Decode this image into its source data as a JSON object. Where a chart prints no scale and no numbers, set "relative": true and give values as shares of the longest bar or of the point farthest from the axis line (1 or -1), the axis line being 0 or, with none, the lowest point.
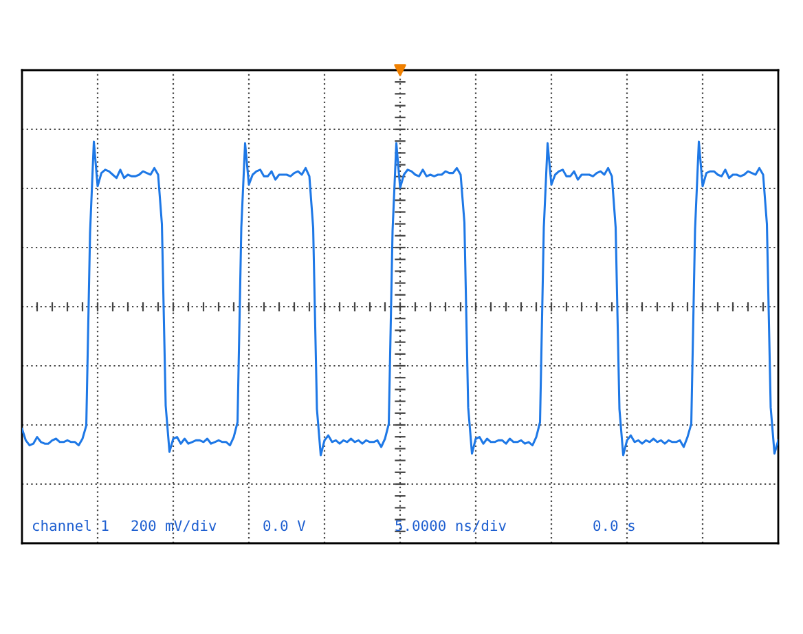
{
  "chart_data": {
    "type": "line",
    "relative": true,
    "grid": true,
    "line_style": "solid",
    "marker": "none",
    "categories": [
      null,
      null,
      null,
      null,
      null,
      null,
      null,
      null,
      null,
      null,
      null,
      null,
      null,
      null,
      null,
      null,
      null,
      null,
      null,
      null,
      null,
      null,
      null,
      null,
      null,
      null,
      null,
      null,
      null,
      null,
      null,
      null,
      null,
      null,
      null,
      null,
      null,
      null,
      null,
      null,
      null,
      null,
      null,
      null,
      null,
      null,
      null,
      null,
      null,
      null,
      null,
      null,
      null,
      null,
      null,
      null,
      null,
      null,
      null,
      null,
      null,
      null,
      null,
      null,
      null,
      null,
      null,
      null,
      null,
      null,
      null,
      null,
      null,
      null,
      null,
      null,
      null,
      null,
      null,
      null,
      null,
      null,
      null,
      null,
      null,
      null,
      null,
      null,
      null,
      null,
      null,
      null,
      null,
      null,
      null,
      null,
      null,
      null,
      null,
      null,
      null,
      null,
      null,
      null,
      null,
      null,
      null,
      null,
      null,
      null,
      null,
      null,
      null,
      null,
      null,
      null,
      null,
      null,
      null,
      null,
      null,
      null,
      null,
      null,
      null,
      null,
      null,
      null,
      null,
      null,
      null,
      null,
      null,
      null,
      null,
      null,
      null,
      null,
      null,
      null,
      null,
      null,
      null,
      null,
      null,
      null,
      null,
      null,
      null,
      null,
      null,
      null,
      null,
      null,
      null,
      null,
      null,
      null,
      null,
      null,
      null,
      null,
      null,
      null,
      null,
      null,
      null,
      null,
      null,
      null,
      null,
      null,
      null,
      null,
      null,
      null,
      null,
      null,
      null,
      null,
      null,
      null,
      null,
      null,
      null,
      null,
      null,
      null,
      null,
      null,
      null,
      null,
      null,
      null,
      null,
      null,
      null,
      null,
      null,
      null,
      null
    ],
    "annotations": [
      "channel 1",
      "200 mV/div",
      "0.0 V",
      "5.0000 ns/div",
      "0.0 s"
    ],
    "series": [
      {
        "color": "#1e78e6",
        "values": [
          -0.74,
          -0.81,
          -0.84,
          -0.83,
          -0.79,
          -0.82,
          -0.83,
          -0.83,
          -0.81,
          -0.8,
          -0.82,
          -0.82,
          -0.81,
          -0.82,
          -0.82,
          -0.84,
          -0.8,
          -0.72,
          0.45,
          1.0,
          0.73,
          0.81,
          0.83,
          0.82,
          0.8,
          0.78,
          0.83,
          0.78,
          0.8,
          0.79,
          0.79,
          0.8,
          0.82,
          0.81,
          0.8,
          0.84,
          0.8,
          0.5,
          -0.6,
          -0.88,
          -0.8,
          -0.79,
          -0.83,
          -0.8,
          -0.83,
          -0.82,
          -0.81,
          -0.81,
          -0.82,
          -0.8,
          -0.83,
          -0.82,
          -0.81,
          -0.82,
          -0.82,
          -0.84,
          -0.79,
          -0.7,
          0.48,
          0.99,
          0.74,
          0.8,
          0.82,
          0.83,
          0.79,
          0.79,
          0.82,
          0.77,
          0.8,
          0.8,
          0.8,
          0.79,
          0.81,
          0.82,
          0.8,
          0.84,
          0.79,
          0.48,
          -0.62,
          -0.9,
          -0.81,
          -0.78,
          -0.82,
          -0.81,
          -0.83,
          -0.81,
          -0.82,
          -0.8,
          -0.82,
          -0.81,
          -0.83,
          -0.81,
          -0.82,
          -0.82,
          -0.81,
          -0.85,
          -0.8,
          -0.71,
          0.46,
          0.99,
          0.72,
          0.8,
          0.83,
          0.82,
          0.8,
          0.79,
          0.83,
          0.79,
          0.8,
          0.79,
          0.8,
          0.8,
          0.82,
          0.81,
          0.81,
          0.84,
          0.8,
          0.51,
          -0.61,
          -0.89,
          -0.8,
          -0.79,
          -0.83,
          -0.8,
          -0.82,
          -0.82,
          -0.81,
          -0.81,
          -0.83,
          -0.8,
          -0.82,
          -0.82,
          -0.81,
          -0.83,
          -0.82,
          -0.84,
          -0.79,
          -0.7,
          0.48,
          0.99,
          0.74,
          0.8,
          0.82,
          0.83,
          0.79,
          0.79,
          0.82,
          0.77,
          0.8,
          0.8,
          0.8,
          0.79,
          0.81,
          0.82,
          0.8,
          0.84,
          0.79,
          0.48,
          -0.62,
          -0.9,
          -0.81,
          -0.78,
          -0.82,
          -0.81,
          -0.83,
          -0.81,
          -0.82,
          -0.8,
          -0.82,
          -0.81,
          -0.83,
          -0.81,
          -0.82,
          -0.82,
          -0.81,
          -0.85,
          -0.79,
          -0.71,
          0.47,
          1.0,
          0.73,
          0.81,
          0.82,
          0.82,
          0.8,
          0.79,
          0.83,
          0.78,
          0.8,
          0.8,
          0.79,
          0.8,
          0.82,
          0.81,
          0.8,
          0.84,
          0.8,
          0.5,
          -0.61,
          -0.89,
          -0.81
        ]
      }
    ]
  }
}
